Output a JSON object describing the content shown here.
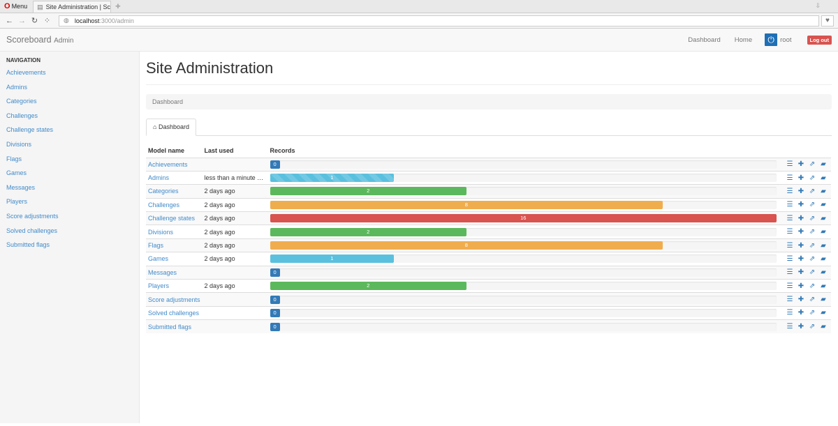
{
  "browser": {
    "menu_label": "Menu",
    "tab_title": "Site Administration | Sc",
    "url_host": "localhost",
    "url_path": ":3000/admin"
  },
  "navbar": {
    "brand": "Scoreboard",
    "brand_sub": "Admin",
    "links": [
      "Dashboard",
      "Home"
    ],
    "user": "root",
    "logout": "Log out"
  },
  "sidebar": {
    "heading": "NAVIGATION",
    "items": [
      "Achievements",
      "Admins",
      "Categories",
      "Challenges",
      "Challenge states",
      "Divisions",
      "Flags",
      "Games",
      "Messages",
      "Players",
      "Score adjustments",
      "Solved challenges",
      "Submitted flags"
    ]
  },
  "main": {
    "title": "Site Administration",
    "breadcrumb": "Dashboard",
    "tab": "Dashboard",
    "columns": [
      "Model name",
      "Last used",
      "Records"
    ],
    "rows": [
      {
        "name": "Achievements",
        "last_used": "",
        "records": 0,
        "color": "#337ab7"
      },
      {
        "name": "Admins",
        "last_used": "less than a minute ago",
        "records": 1,
        "color": "#5bc0de",
        "striped": true
      },
      {
        "name": "Categories",
        "last_used": "2 days ago",
        "records": 2,
        "color": "#5cb85c"
      },
      {
        "name": "Challenges",
        "last_used": "2 days ago",
        "records": 8,
        "color": "#f0ad4e"
      },
      {
        "name": "Challenge states",
        "last_used": "2 days ago",
        "records": 16,
        "color": "#d9534f"
      },
      {
        "name": "Divisions",
        "last_used": "2 days ago",
        "records": 2,
        "color": "#5cb85c"
      },
      {
        "name": "Flags",
        "last_used": "2 days ago",
        "records": 8,
        "color": "#f0ad4e"
      },
      {
        "name": "Games",
        "last_used": "2 days ago",
        "records": 1,
        "color": "#5bc0de"
      },
      {
        "name": "Messages",
        "last_used": "",
        "records": 0,
        "color": "#337ab7"
      },
      {
        "name": "Players",
        "last_used": "2 days ago",
        "records": 2,
        "color": "#5cb85c"
      },
      {
        "name": "Score adjustments",
        "last_used": "",
        "records": 0,
        "color": "#337ab7"
      },
      {
        "name": "Solved challenges",
        "last_used": "",
        "records": 0,
        "color": "#337ab7"
      },
      {
        "name": "Submitted flags",
        "last_used": "",
        "records": 0,
        "color": "#337ab7"
      }
    ],
    "row_actions": [
      "list-icon",
      "plus-icon",
      "export-icon",
      "book-icon"
    ]
  }
}
